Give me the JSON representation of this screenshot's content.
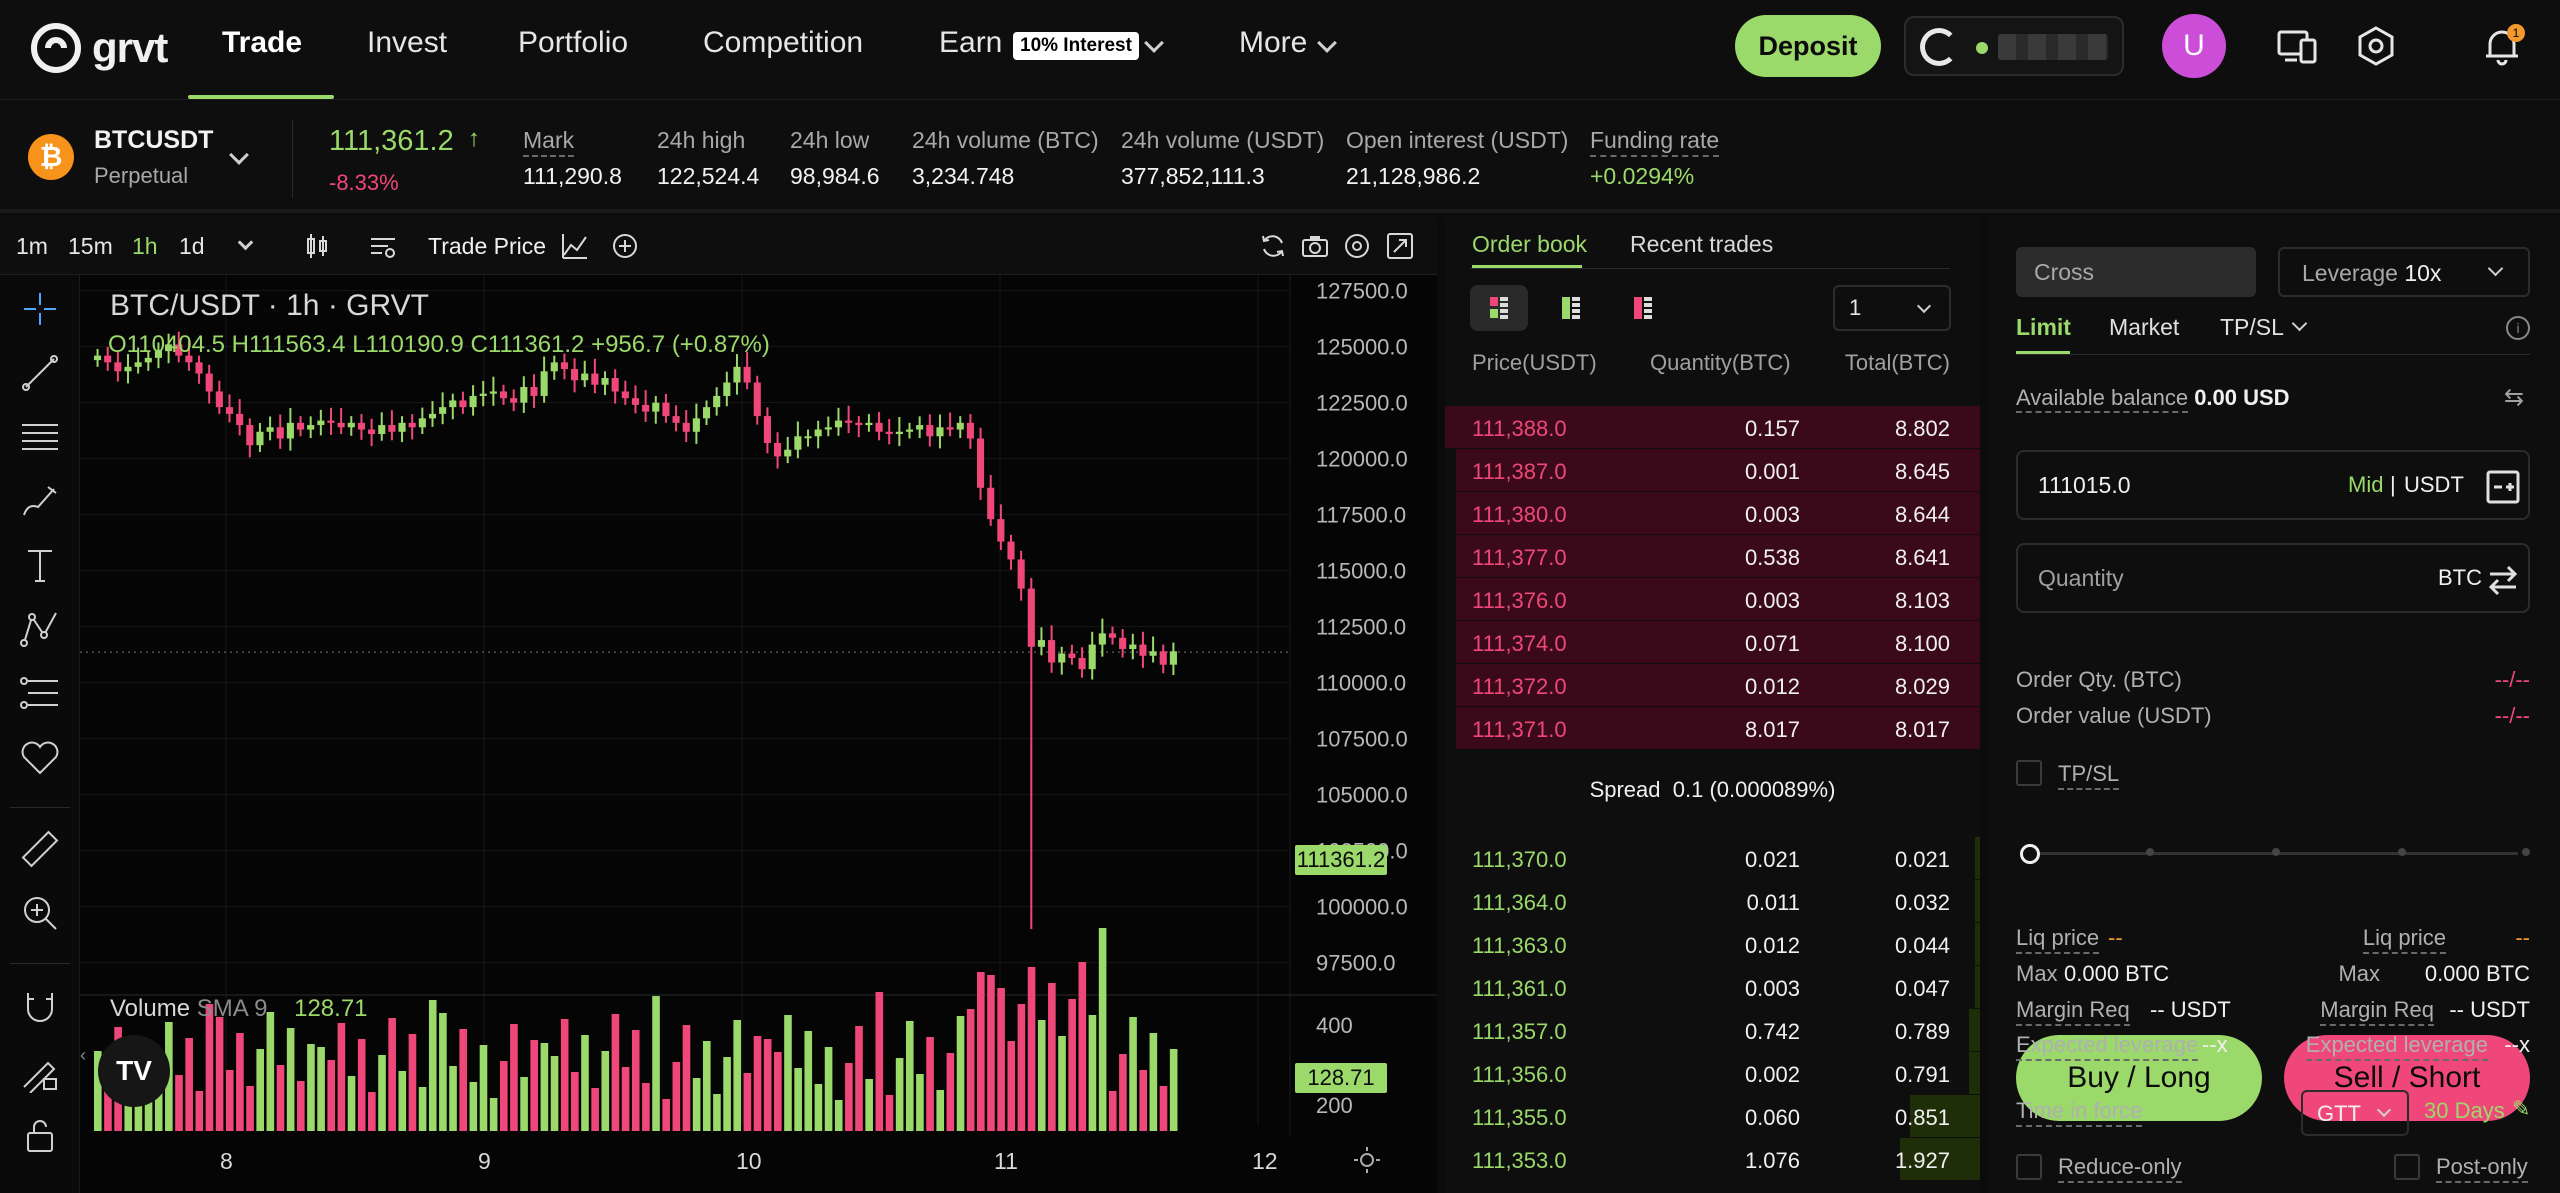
{
  "nav": {
    "logo_text": "grvt",
    "items": [
      {
        "label": "Trade"
      },
      {
        "label": "Invest"
      },
      {
        "label": "Portfolio"
      },
      {
        "label": "Competition"
      },
      {
        "label": "Earn"
      },
      {
        "label": "More"
      }
    ],
    "earn_badge": "10% Interest",
    "deposit_label": "Deposit",
    "avatar_letter": "U",
    "notification_count": "1",
    "icons": [
      "grvt-logo-icon",
      "wallet-g-icon",
      "devices-icon",
      "settings-hex-icon",
      "bell-icon"
    ]
  },
  "ticker": {
    "symbol": "BTCUSDT",
    "type": "Perpetual",
    "last_price": "111,361.2",
    "change": "-8.33%",
    "stats": [
      {
        "label": "Mark",
        "value": "111,290.8"
      },
      {
        "label": "24h high",
        "value": "122,524.4"
      },
      {
        "label": "24h low",
        "value": "98,984.6"
      },
      {
        "label": "24h volume (BTC)",
        "value": "3,234.748"
      },
      {
        "label": "24h volume (USDT)",
        "value": "377,852,111.3"
      },
      {
        "label": "Open interest (USDT)",
        "value": "21,128,986.2"
      },
      {
        "label": "Funding rate",
        "value": "+0.0294%"
      }
    ],
    "colors": {
      "up": "#9ad96a",
      "down": "#f0477a",
      "btc": "#f7931a"
    }
  },
  "chart_toolbar": {
    "timeframes": [
      "1m",
      "15m",
      "1h",
      "1d"
    ],
    "active_timeframe": "1h",
    "price_source": "Trade Price"
  },
  "chart_data": {
    "type": "candlestick",
    "title": "BTC/USDT · 1h · GRVT",
    "ohlc_text": "O110404.5 H111563.4 L110190.9 C111361.2 +956.7 (+0.87%)",
    "price_axis_ticks": [
      "127500.0",
      "125000.0",
      "122500.0",
      "120000.0",
      "117500.0",
      "115000.0",
      "112500.0",
      "110000.0",
      "107500.0",
      "105000.0",
      "102500.0",
      "100000.0",
      "97500.0"
    ],
    "ylim": [
      96500,
      128200
    ],
    "last_price_tag": "111361.2",
    "x_ticks": [
      "8",
      "9",
      "10",
      "11",
      "12"
    ],
    "volume_label": "Volume",
    "volume_sma_label": "SMA 9",
    "volume_sma_value": "128.71",
    "volume_axis_ticks": [
      "400",
      "200"
    ],
    "volume_tag": "128.71"
  },
  "orderbook": {
    "tabs": [
      "Order book",
      "Recent trades"
    ],
    "precision": "1",
    "headers": {
      "price": "Price(USDT)",
      "qty": "Quantity(BTC)",
      "total": "Total(BTC)"
    },
    "asks": [
      {
        "price": "111,388.0",
        "qty": "0.157",
        "total": "8.802",
        "depth": 1.0
      },
      {
        "price": "111,387.0",
        "qty": "0.001",
        "total": "8.645",
        "depth": 0.98
      },
      {
        "price": "111,380.0",
        "qty": "0.003",
        "total": "8.644",
        "depth": 0.98
      },
      {
        "price": "111,377.0",
        "qty": "0.538",
        "total": "8.641",
        "depth": 0.98
      },
      {
        "price": "111,376.0",
        "qty": "0.003",
        "total": "8.103",
        "depth": 0.98
      },
      {
        "price": "111,374.0",
        "qty": "0.071",
        "total": "8.100",
        "depth": 0.98
      },
      {
        "price": "111,372.0",
        "qty": "0.012",
        "total": "8.029",
        "depth": 0.98
      },
      {
        "price": "111,371.0",
        "qty": "8.017",
        "total": "8.017",
        "depth": 0.98
      }
    ],
    "spread_label": "Spread",
    "spread_value": "0.1 (0.000089%)",
    "bids": [
      {
        "price": "111,370.0",
        "qty": "0.021",
        "total": "0.021",
        "depth": 0.01
      },
      {
        "price": "111,364.0",
        "qty": "0.011",
        "total": "0.032",
        "depth": 0.01
      },
      {
        "price": "111,363.0",
        "qty": "0.012",
        "total": "0.044",
        "depth": 0.01
      },
      {
        "price": "111,361.0",
        "qty": "0.003",
        "total": "0.047",
        "depth": 0.01
      },
      {
        "price": "111,357.0",
        "qty": "0.742",
        "total": "0.789",
        "depth": 0.02
      },
      {
        "price": "111,356.0",
        "qty": "0.002",
        "total": "0.791",
        "depth": 0.02
      },
      {
        "price": "111,355.0",
        "qty": "0.060",
        "total": "0.851",
        "depth": 0.13
      },
      {
        "price": "111,353.0",
        "qty": "1.076",
        "total": "1.927",
        "depth": 0.15
      }
    ]
  },
  "trade_form": {
    "margin_mode": "Cross",
    "leverage_label": "Leverage",
    "leverage_value": "10x",
    "order_types": [
      "Limit",
      "Market",
      "TP/SL"
    ],
    "active_order_type": "Limit",
    "available_label": "Available balance",
    "available_value": "0.00 USD",
    "price_value": "111015.0",
    "price_mid": "Mid",
    "price_unit": "USDT",
    "quantity_placeholder": "Quantity",
    "quantity_unit": "BTC",
    "order_qty_label": "Order Qty. (BTC)",
    "order_qty_value": "--/--",
    "order_value_label": "Order value (USDT)",
    "order_value_value": "--/--",
    "tpsl_label": "TP/SL",
    "buy_label": "Buy / Long",
    "sell_label": "Sell / Short",
    "buy": {
      "liq_label": "Liq price",
      "liq_value": "--",
      "max_label": "Max",
      "max_value": "0.000 BTC",
      "margin_label": "Margin Req",
      "margin_value": "-- USDT",
      "exp_label": "Expected leverage",
      "exp_value": "--x"
    },
    "sell": {
      "liq_label": "Liq price",
      "liq_value": "--",
      "max_label": "Max",
      "max_value": "0.000 BTC",
      "margin_label": "Margin Req",
      "margin_value": "-- USDT",
      "exp_label": "Expected leverage",
      "exp_value": "--x"
    },
    "tif_label": "Time in force",
    "tif_value": "GTT",
    "tif_days": "30 Days",
    "reduce_only_label": "Reduce-only",
    "post_only_label": "Post-only"
  }
}
